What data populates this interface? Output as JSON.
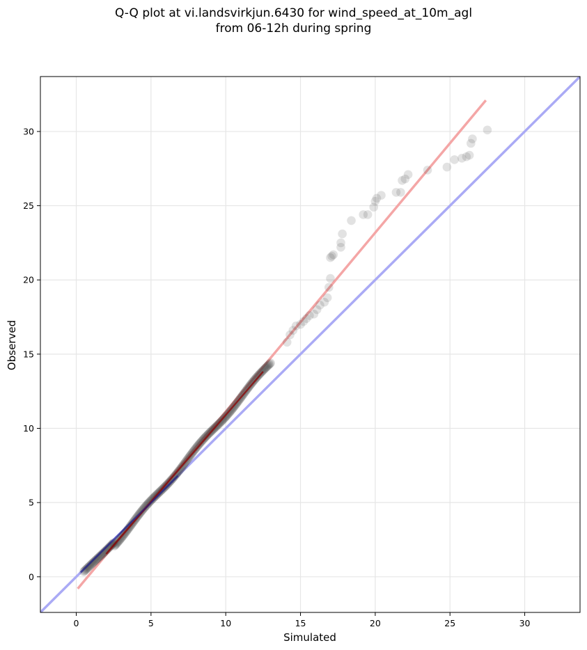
{
  "chart_data": {
    "type": "scatter",
    "title_lines": [
      "Q-Q plot at vi.landsvirkjun.6430 for wind_speed_at_10m_agl",
      "from 06-12h during spring"
    ],
    "xlabel": "Simulated",
    "ylabel": "Observed",
    "xlim": [
      -2.4,
      33.7
    ],
    "ylim": [
      -2.4,
      33.7
    ],
    "xticks": [
      0,
      5,
      10,
      15,
      20,
      25,
      30
    ],
    "yticks": [
      0,
      5,
      10,
      15,
      20,
      25,
      30
    ],
    "grid": true,
    "colors": {
      "points": "#333333",
      "identity_line": "#aaaaf5",
      "fit_line": "#f4a6a6",
      "fit_line_dense": "#8b0000",
      "identity_line_dense": "#1a1a8c"
    },
    "identity_line": {
      "x": [
        -2.4,
        33.7
      ],
      "y": [
        -2.4,
        33.7
      ]
    },
    "fit_line": {
      "x": [
        0.1,
        27.4
      ],
      "y": [
        -0.8,
        32.1
      ]
    },
    "dense_segment": {
      "x_start": 0.5,
      "x_end": 13.0,
      "slope": 1.17,
      "intercept": -0.8
    },
    "sparse_points": {
      "x": [
        14.1,
        14.3,
        14.5,
        14.7,
        15.0,
        15.2,
        15.4,
        15.6,
        15.9,
        16.1,
        16.3,
        16.6,
        16.8,
        16.9,
        17.0,
        17.0,
        17.1,
        17.2,
        17.7,
        17.7,
        17.8,
        18.4,
        19.2,
        19.5,
        19.9,
        20.0,
        20.1,
        20.4,
        21.4,
        21.7,
        21.8,
        22.0,
        22.2,
        23.5,
        24.8,
        25.3,
        25.8,
        26.1,
        26.3,
        26.4,
        26.5,
        27.5
      ],
      "y": [
        15.8,
        16.3,
        16.6,
        16.9,
        17.0,
        17.2,
        17.4,
        17.6,
        17.7,
        18.0,
        18.3,
        18.5,
        18.8,
        19.5,
        20.1,
        21.5,
        21.6,
        21.7,
        22.2,
        22.5,
        23.1,
        24.0,
        24.4,
        24.4,
        24.9,
        25.3,
        25.5,
        25.7,
        25.9,
        25.9,
        26.7,
        26.8,
        27.1,
        27.4,
        27.6,
        28.1,
        28.2,
        28.3,
        28.4,
        29.2,
        29.5,
        30.1
      ]
    }
  }
}
